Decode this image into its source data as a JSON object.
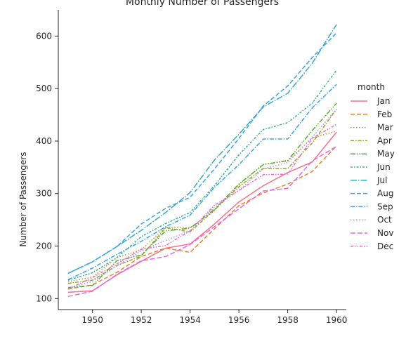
{
  "chart_data": {
    "type": "line",
    "title": "Monthly Number of Passengers",
    "xlabel": "",
    "ylabel": "Number of Passengers",
    "xlim": [
      1948.6,
      1960.4
    ],
    "ylim": [
      79,
      650
    ],
    "xticks": [
      1950,
      1952,
      1954,
      1956,
      1958,
      1960
    ],
    "yticks": [
      100,
      200,
      300,
      400,
      500,
      600
    ],
    "grid": false,
    "legend": {
      "title": "month",
      "placement": "right"
    },
    "x": [
      1949,
      1950,
      1951,
      1952,
      1953,
      1954,
      1955,
      1956,
      1957,
      1958,
      1959,
      1960
    ],
    "series": [
      {
        "name": "Jan",
        "color": "#f77189",
        "dash": "solid",
        "values": [
          112,
          115,
          145,
          171,
          196,
          204,
          242,
          284,
          315,
          340,
          360,
          417
        ]
      },
      {
        "name": "Feb",
        "color": "#e68332",
        "dash": "dash",
        "values": [
          118,
          126,
          150,
          180,
          196,
          188,
          233,
          277,
          301,
          318,
          342,
          391
        ]
      },
      {
        "name": "Mar",
        "color": "#bb9832",
        "dash": "dot",
        "values": [
          132,
          141,
          178,
          193,
          236,
          235,
          267,
          317,
          356,
          362,
          406,
          419
        ]
      },
      {
        "name": "Apr",
        "color": "#97a431",
        "dash": "dashdot",
        "values": [
          129,
          135,
          163,
          181,
          235,
          227,
          269,
          313,
          348,
          348,
          396,
          461
        ]
      },
      {
        "name": "May",
        "color": "#50b131",
        "dash": "dashdotdot",
        "values": [
          121,
          125,
          172,
          183,
          229,
          234,
          270,
          318,
          355,
          363,
          420,
          472
        ]
      },
      {
        "name": "Jun",
        "color": "#34ae91",
        "dash": "dashdotdotdot",
        "values": [
          135,
          149,
          178,
          218,
          243,
          264,
          315,
          374,
          422,
          435,
          472,
          535
        ]
      },
      {
        "name": "Jul",
        "color": "#37abb5",
        "dash": "longdashdot",
        "values": [
          148,
          170,
          199,
          230,
          264,
          302,
          364,
          413,
          465,
          491,
          548,
          622
        ]
      },
      {
        "name": "Aug",
        "color": "#3ba3ec",
        "dash": "dash",
        "values": [
          148,
          170,
          199,
          242,
          272,
          293,
          347,
          405,
          467,
          505,
          559,
          606
        ]
      },
      {
        "name": "Sep",
        "color": "#3ba3ec",
        "dash": "dashdot2",
        "values": [
          136,
          158,
          184,
          209,
          237,
          259,
          312,
          355,
          404,
          404,
          463,
          508
        ]
      },
      {
        "name": "Oct",
        "color": "#ae8ff0",
        "dash": "dot",
        "values": [
          119,
          133,
          162,
          191,
          211,
          229,
          274,
          306,
          347,
          359,
          407,
          461
        ]
      },
      {
        "name": "Nov",
        "color": "#e867e8",
        "dash": "dash2",
        "values": [
          104,
          114,
          146,
          172,
          180,
          203,
          237,
          271,
          305,
          310,
          362,
          390
        ]
      },
      {
        "name": "Dec",
        "color": "#f569c6",
        "dash": "dashdot3",
        "values": [
          118,
          140,
          166,
          194,
          201,
          229,
          278,
          306,
          336,
          337,
          405,
          432
        ]
      }
    ]
  }
}
